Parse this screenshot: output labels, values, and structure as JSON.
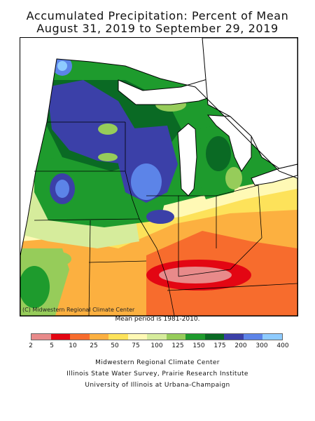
{
  "title_line1": "Accumulated Precipitation: Percent of Mean",
  "title_line2": "August 31, 2019 to September 29, 2019",
  "credit": "(C) Midwestern Regional Climate Center",
  "mean_period": "Mean period is 1981-2010.",
  "legend": {
    "ticks": [
      "2",
      "5",
      "10",
      "25",
      "50",
      "75",
      "100",
      "125",
      "150",
      "175",
      "200",
      "300",
      "400"
    ],
    "colors": [
      "#e88a8a",
      "#e30613",
      "#f76c2d",
      "#fcb040",
      "#fde25a",
      "#fff9b5",
      "#d6ec9c",
      "#96cc5a",
      "#1e9b2d",
      "#0a6a24",
      "#3b40a8",
      "#5c84e8",
      "#8ecbff"
    ]
  },
  "footer": {
    "line1": "Midwestern Regional Climate Center",
    "line2": "Illinois State Water Survey, Prairie Research Institute",
    "line3": "University of Illinois at Urbana-Champaign"
  }
}
